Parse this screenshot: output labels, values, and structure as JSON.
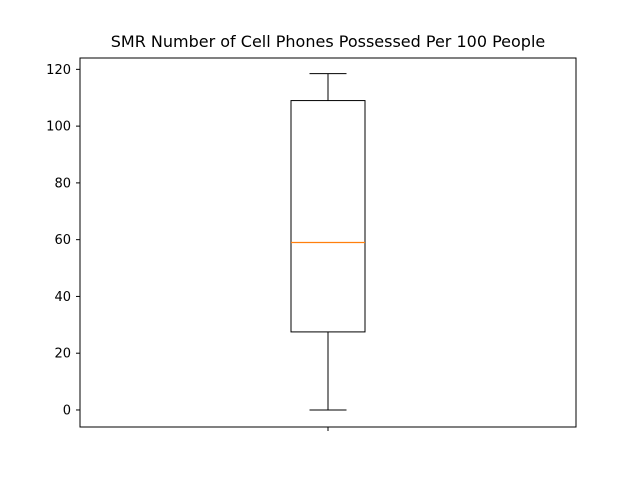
{
  "chart_data": {
    "type": "box",
    "title": "SMR Number of Cell Phones Possessed Per 100 People",
    "xlabel": "",
    "ylabel": "",
    "ylim": [
      -6,
      124
    ],
    "yticks": [
      0,
      20,
      40,
      60,
      80,
      100,
      120
    ],
    "ytick_labels": [
      "0",
      "20",
      "40",
      "60",
      "80",
      "100",
      "120"
    ],
    "series": [
      {
        "min": 0,
        "q1": 27.5,
        "median": 59,
        "q3": 109,
        "max": 118.5
      }
    ],
    "colors": {
      "box": "#000000",
      "median": "#ff7f0e"
    },
    "grid": false
  }
}
